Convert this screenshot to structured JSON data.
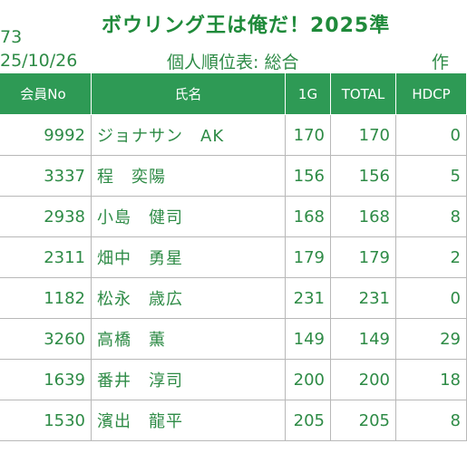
{
  "header": {
    "id_fragment": "73",
    "date": "25/10/26",
    "title": "ボウリング王は俺だ！2025準",
    "subtitle": "個人順位表: 総合",
    "right_fragment": "作"
  },
  "table": {
    "columns": [
      "会員No",
      "氏名",
      "1G",
      "TOTAL",
      "HDCP"
    ],
    "rows": [
      {
        "no": "9992",
        "name": "ジョナサン　AK",
        "g1": "170",
        "total": "170",
        "hdcp": "0"
      },
      {
        "no": "3337",
        "name": "程　奕陽",
        "g1": "156",
        "total": "156",
        "hdcp": "5"
      },
      {
        "no": "2938",
        "name": "小島　健司",
        "g1": "168",
        "total": "168",
        "hdcp": "8"
      },
      {
        "no": "2311",
        "name": "畑中　勇星",
        "g1": "179",
        "total": "179",
        "hdcp": "2"
      },
      {
        "no": "1182",
        "name": "松永　歳広",
        "g1": "231",
        "total": "231",
        "hdcp": "0"
      },
      {
        "no": "3260",
        "name": "高橋　薫",
        "g1": "149",
        "total": "149",
        "hdcp": "29"
      },
      {
        "no": "1639",
        "name": "番井　淳司",
        "g1": "200",
        "total": "200",
        "hdcp": "18"
      },
      {
        "no": "1530",
        "name": "濱出　龍平",
        "g1": "205",
        "total": "205",
        "hdcp": "8"
      }
    ]
  },
  "colors": {
    "header_bg": "#2e9a55",
    "text": "#2e8b46",
    "title": "#1f8a3a"
  }
}
